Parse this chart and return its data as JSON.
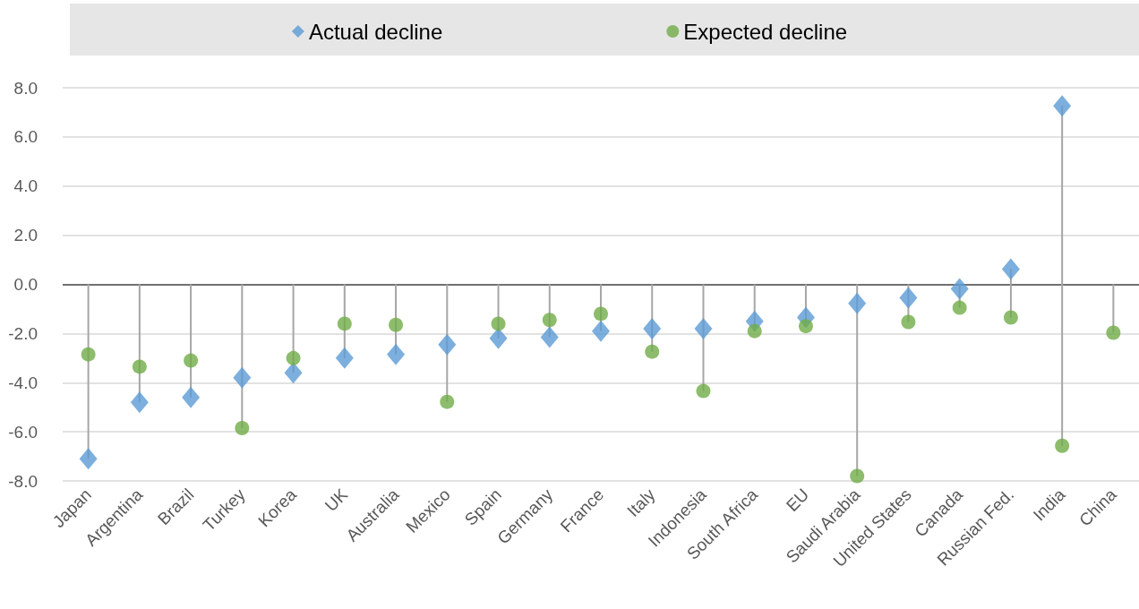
{
  "chart_data": {
    "type": "lollipop",
    "categories": [
      "Japan",
      "Argentina",
      "Brazil",
      "Turkey",
      "Korea",
      "UK",
      "Australia",
      "Mexico",
      "Spain",
      "Germany",
      "France",
      "Italy",
      "Indonesia",
      "South Africa",
      "EU",
      "Saudi Arabia",
      "United States",
      "Canada",
      "Russian Fed.",
      "India",
      "China"
    ],
    "series": [
      {
        "name": "Actual decline",
        "color": "#5b9bd5",
        "marker": "diamond",
        "values": [
          -7.1,
          -4.8,
          -4.6,
          -3.8,
          -3.6,
          -3.0,
          -2.85,
          -2.45,
          -2.2,
          -2.15,
          -1.9,
          -1.8,
          -1.8,
          -1.5,
          -1.35,
          -0.77,
          -0.55,
          -0.18,
          0.62,
          7.26,
          null
        ]
      },
      {
        "name": "Expected decline",
        "color": "#70ad47",
        "marker": "circle",
        "values": [
          -2.85,
          -3.35,
          -3.1,
          -5.85,
          -3.0,
          -1.6,
          -1.65,
          -4.78,
          -1.6,
          -1.45,
          -1.2,
          -2.74,
          -4.34,
          -1.9,
          -1.7,
          -7.8,
          -1.53,
          -0.95,
          -1.35,
          -6.57,
          -1.97
        ]
      }
    ],
    "ylim": [
      -8,
      8
    ],
    "yticks": [
      {
        "value": -8,
        "label": "-8.0"
      },
      {
        "value": -6,
        "label": "-6.0"
      },
      {
        "value": -4,
        "label": "-4.0"
      },
      {
        "value": -2,
        "label": "-2.0"
      },
      {
        "value": 0,
        "label": "0.0"
      },
      {
        "value": 2,
        "label": "2.0"
      },
      {
        "value": 4,
        "label": "4.0"
      },
      {
        "value": 6,
        "label": "6.0"
      },
      {
        "value": 8,
        "label": "8.0"
      }
    ],
    "grid": "y",
    "legend": "top"
  }
}
